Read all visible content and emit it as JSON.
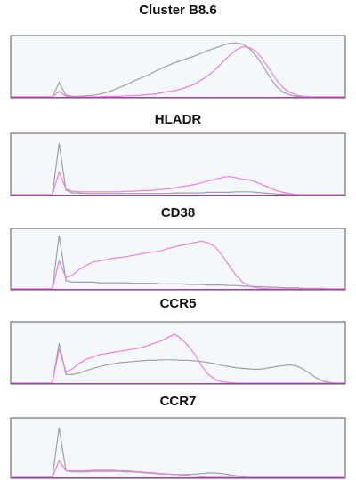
{
  "chart_data": [
    {
      "type": "line",
      "title": "Cluster B8.6",
      "ylim": [
        0,
        100
      ],
      "series": [
        {
          "color": "#a0a0a0",
          "values": [
            0,
            0,
            0,
            0,
            0,
            0,
            0,
            25,
            3,
            1,
            1,
            2,
            3,
            5,
            8,
            12,
            17,
            22,
            28,
            33,
            38,
            44,
            50,
            55,
            60,
            64,
            68,
            72,
            77,
            82,
            86,
            90,
            94,
            95,
            93,
            85,
            72,
            55,
            35,
            18,
            8,
            3,
            1,
            0,
            0,
            0,
            0,
            0,
            0,
            0
          ]
        },
        {
          "color": "#f07cdc",
          "values": [
            0,
            0,
            0,
            0,
            0,
            0,
            0,
            10,
            1,
            0,
            0,
            0,
            0,
            0,
            1,
            1,
            1,
            2,
            2,
            3,
            4,
            5,
            7,
            9,
            11,
            14,
            18,
            23,
            30,
            38,
            48,
            60,
            72,
            82,
            88,
            87,
            80,
            66,
            48,
            30,
            16,
            8,
            3,
            1,
            0,
            0,
            0,
            0,
            0,
            0
          ]
        }
      ]
    },
    {
      "type": "line",
      "title": "HLADR",
      "ylim": [
        0,
        100
      ],
      "series": [
        {
          "color": "#a0a0a0",
          "values": [
            0,
            0,
            0,
            0,
            0,
            0,
            0,
            90,
            8,
            3,
            3,
            2,
            2,
            2,
            2,
            2,
            2,
            2,
            2,
            2,
            2,
            2,
            2,
            2,
            3,
            3,
            3,
            3,
            3,
            4,
            4,
            4,
            4,
            5,
            5,
            5,
            4,
            3,
            2,
            1,
            1,
            0,
            0,
            0,
            0,
            0,
            0,
            0,
            0,
            0
          ]
        },
        {
          "color": "#f07cdc",
          "values": [
            0,
            0,
            0,
            0,
            0,
            0,
            0,
            40,
            10,
            6,
            5,
            5,
            5,
            5,
            5,
            5,
            5,
            6,
            6,
            7,
            7,
            8,
            9,
            10,
            12,
            14,
            16,
            18,
            21,
            24,
            27,
            30,
            32,
            30,
            27,
            26,
            22,
            17,
            12,
            7,
            4,
            2,
            0,
            0,
            0,
            0,
            0,
            0,
            0,
            0
          ]
        }
      ]
    },
    {
      "type": "line",
      "title": "CD38",
      "ylim": [
        0,
        100
      ],
      "series": [
        {
          "color": "#a0a0a0",
          "values": [
            0,
            0,
            0,
            0,
            0,
            0,
            0,
            95,
            15,
            12,
            12,
            12,
            12,
            11,
            11,
            11,
            11,
            11,
            10,
            10,
            10,
            10,
            9,
            9,
            9,
            9,
            8,
            8,
            8,
            7,
            7,
            7,
            6,
            6,
            5,
            5,
            4,
            4,
            3,
            3,
            2,
            2,
            2,
            1,
            1,
            1,
            1,
            0,
            0,
            0
          ]
        },
        {
          "color": "#f07cdc",
          "values": [
            0,
            0,
            0,
            0,
            0,
            0,
            0,
            50,
            20,
            25,
            35,
            42,
            48,
            50,
            52,
            55,
            56,
            58,
            60,
            62,
            65,
            66,
            68,
            72,
            75,
            78,
            80,
            83,
            85,
            82,
            75,
            60,
            42,
            25,
            12,
            5,
            2,
            1,
            0,
            0,
            0,
            0,
            0,
            0,
            0,
            0,
            0,
            0,
            0,
            0
          ]
        }
      ]
    },
    {
      "type": "line",
      "title": "CCR5",
      "ylim": [
        0,
        100
      ],
      "series": [
        {
          "color": "#a0a0a0",
          "values": [
            0,
            0,
            0,
            0,
            0,
            0,
            0,
            70,
            15,
            15,
            18,
            22,
            26,
            29,
            32,
            34,
            36,
            37,
            38,
            39,
            40,
            40,
            41,
            41,
            41,
            40,
            40,
            39,
            38,
            36,
            34,
            31,
            29,
            27,
            26,
            25,
            24,
            25,
            27,
            29,
            31,
            32,
            30,
            24,
            16,
            8,
            3,
            1,
            0,
            0
          ]
        },
        {
          "color": "#f07cdc",
          "values": [
            0,
            0,
            0,
            0,
            0,
            0,
            0,
            60,
            20,
            25,
            35,
            42,
            46,
            50,
            52,
            54,
            56,
            58,
            60,
            62,
            66,
            70,
            74,
            80,
            86,
            78,
            66,
            50,
            30,
            15,
            6,
            2,
            1,
            0,
            0,
            0,
            0,
            0,
            0,
            0,
            0,
            0,
            0,
            0,
            0,
            0,
            0,
            0,
            0,
            0
          ]
        }
      ]
    },
    {
      "type": "line",
      "title": "CCR7",
      "ylim": [
        0,
        100
      ],
      "series": [
        {
          "color": "#a0a0a0",
          "values": [
            0,
            0,
            0,
            0,
            0,
            0,
            0,
            90,
            12,
            10,
            10,
            10,
            11,
            11,
            11,
            11,
            11,
            10,
            10,
            9,
            8,
            7,
            6,
            6,
            5,
            5,
            5,
            6,
            7,
            8,
            8,
            7,
            5,
            3,
            1,
            0,
            0,
            0,
            0,
            0,
            0,
            0,
            0,
            0,
            0,
            0,
            0,
            0,
            0,
            0
          ]
        },
        {
          "color": "#f07cdc",
          "values": [
            0,
            0,
            0,
            0,
            0,
            0,
            0,
            30,
            12,
            12,
            12,
            12,
            13,
            13,
            13,
            13,
            12,
            12,
            11,
            10,
            9,
            8,
            7,
            6,
            5,
            4,
            3,
            2,
            1,
            0,
            0,
            0,
            0,
            0,
            0,
            0,
            0,
            0,
            0,
            0,
            0,
            0,
            0,
            0,
            0,
            0,
            0,
            0,
            0,
            0
          ]
        }
      ]
    }
  ]
}
